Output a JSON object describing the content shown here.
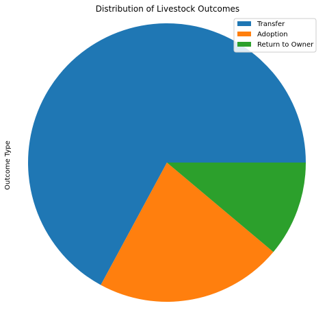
{
  "chart_data": {
    "type": "pie",
    "title": "Distribution of Livestock Outcomes",
    "ylabel": "Outcome Type",
    "categories": [
      "Transfer",
      "Adoption",
      "Return to Owner"
    ],
    "values": [
      67.1,
      21.8,
      11.1
    ],
    "colors": [
      "#1f77b4",
      "#ff7f0e",
      "#2ca02c"
    ],
    "start_angle_deg": 0,
    "direction": "counterclockwise",
    "legend_position": "top-right"
  }
}
